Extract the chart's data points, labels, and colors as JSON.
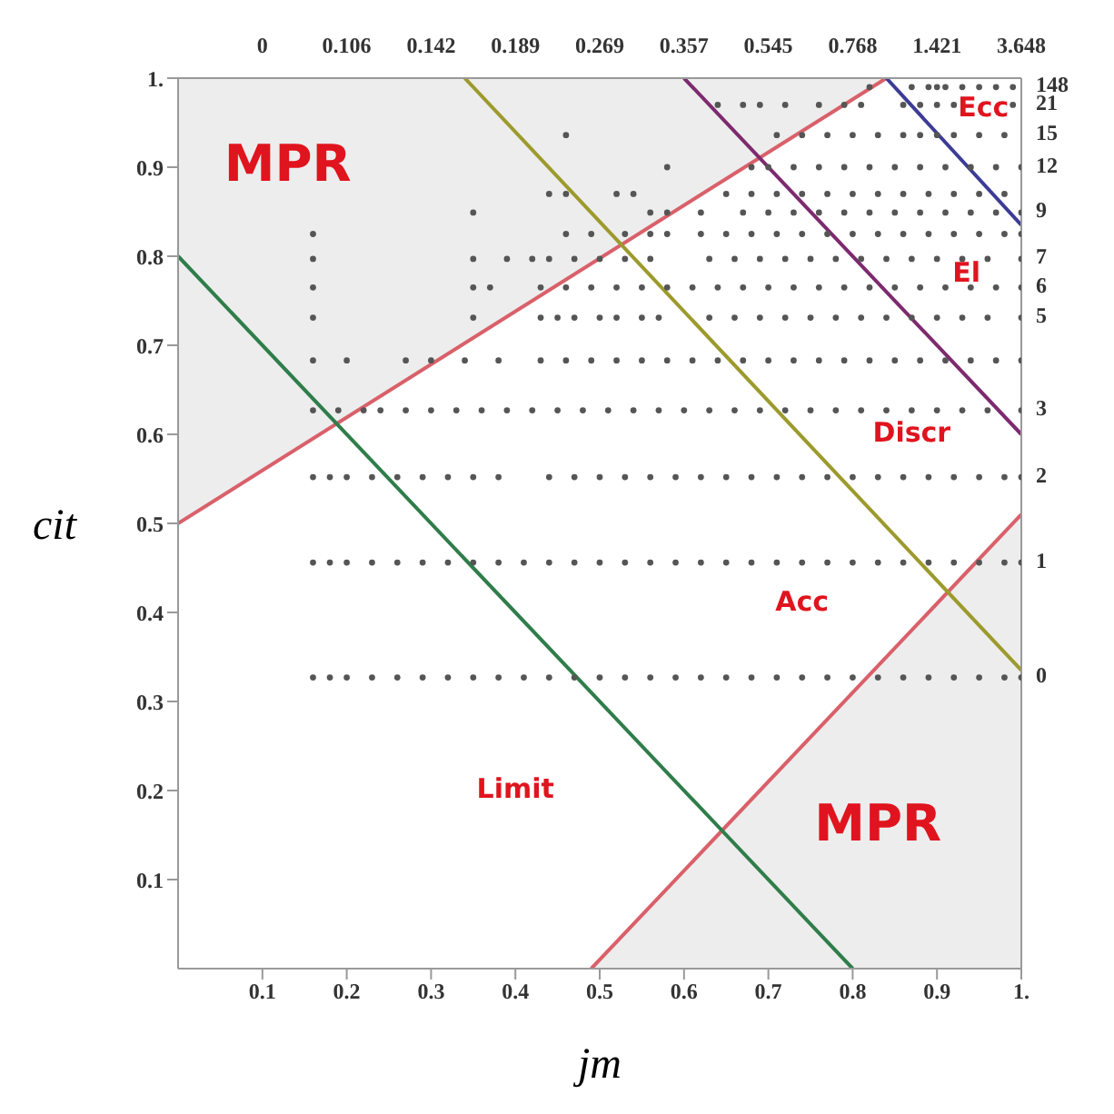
{
  "chart_data": {
    "type": "scatter",
    "xlabel": "jm",
    "ylabel": "cit",
    "marker": "circle",
    "xlim": [
      0,
      1
    ],
    "ylim": [
      0,
      1
    ],
    "xticks": [
      0.1,
      0.2,
      0.3,
      0.4,
      0.5,
      0.6,
      0.7,
      0.8,
      0.9,
      {
        "value": 1,
        "label": "1."
      }
    ],
    "yticks": [
      0.1,
      0.2,
      0.3,
      0.4,
      0.5,
      0.6,
      0.7,
      0.8,
      0.9,
      {
        "value": 1,
        "label": "1."
      }
    ],
    "series": [
      {
        "type": "line",
        "marker": "none",
        "color": "#d9606a",
        "x": [
          0,
          0.84
        ],
        "values": [
          0.5,
          1
        ],
        "lower": [
          0.5,
          1
        ],
        "upper": [
          1,
          1
        ]
      },
      {
        "type": "line",
        "marker": "none",
        "color": "#d9606a",
        "x": [
          0.49,
          1
        ],
        "values": [
          0,
          0.51
        ],
        "lower": [
          0,
          0
        ],
        "upper": [
          0,
          0.51
        ]
      },
      {
        "name": "0",
        "color": "#555555",
        "x": [
          0.16,
          0.18,
          0.2,
          0.23,
          0.26,
          0.29,
          0.32,
          0.35,
          0.38,
          0.41,
          0.44,
          0.47,
          0.5,
          0.53,
          0.56,
          0.59,
          0.62,
          0.65,
          0.68,
          0.71,
          0.74,
          0.77,
          0.8,
          0.83,
          0.86,
          0.89,
          0.92,
          0.95,
          0.98,
          1.0
        ],
        "values": [
          0.327,
          0.327,
          0.327,
          0.327,
          0.327,
          0.327,
          0.327,
          0.327,
          0.327,
          0.327,
          0.327,
          0.327,
          0.327,
          0.327,
          0.327,
          0.327,
          0.327,
          0.327,
          0.327,
          0.327,
          0.327,
          0.327,
          0.327,
          0.327,
          0.327,
          0.327,
          0.327,
          0.327,
          0.327,
          0.327
        ]
      },
      {
        "name": "1",
        "color": "#555555",
        "x": [
          0.16,
          0.18,
          0.2,
          0.23,
          0.26,
          0.29,
          0.32,
          0.35,
          0.38,
          0.41,
          0.44,
          0.47,
          0.5,
          0.53,
          0.56,
          0.59,
          0.62,
          0.65,
          0.68,
          0.71,
          0.74,
          0.77,
          0.8,
          0.83,
          0.86,
          0.89,
          0.92,
          0.95,
          0.98,
          1.0
        ],
        "values": [
          0.456,
          0.456,
          0.456,
          0.456,
          0.456,
          0.456,
          0.456,
          0.456,
          0.456,
          0.456,
          0.456,
          0.456,
          0.456,
          0.456,
          0.456,
          0.456,
          0.456,
          0.456,
          0.456,
          0.456,
          0.456,
          0.456,
          0.456,
          0.456,
          0.456,
          0.456,
          0.456,
          0.456,
          0.456,
          0.456
        ]
      },
      {
        "name": "2",
        "color": "#555555",
        "x": [
          0.16,
          0.18,
          0.2,
          0.23,
          0.26,
          0.29,
          0.32,
          0.35,
          0.38,
          0.44,
          0.47,
          0.5,
          0.53,
          0.56,
          0.59,
          0.62,
          0.65,
          0.68,
          0.71,
          0.74,
          0.77,
          0.8,
          0.83,
          0.86,
          0.89,
          0.92,
          0.95,
          0.98,
          1.0
        ],
        "values": [
          0.552,
          0.552,
          0.552,
          0.552,
          0.552,
          0.552,
          0.552,
          0.552,
          0.552,
          0.552,
          0.552,
          0.552,
          0.552,
          0.552,
          0.552,
          0.552,
          0.552,
          0.552,
          0.552,
          0.552,
          0.552,
          0.552,
          0.552,
          0.552,
          0.552,
          0.552,
          0.552,
          0.552,
          0.552
        ]
      },
      {
        "name": "3",
        "color": "#555555",
        "x": [
          0.16,
          0.19,
          0.22,
          0.24,
          0.27,
          0.3,
          0.33,
          0.36,
          0.39,
          0.42,
          0.45,
          0.48,
          0.51,
          0.54,
          0.57,
          0.6,
          0.63,
          0.66,
          0.69,
          0.72,
          0.75,
          0.78,
          0.81,
          0.84,
          0.87,
          0.9,
          0.93,
          0.96,
          1.0
        ],
        "values": [
          0.627,
          0.627,
          0.627,
          0.627,
          0.627,
          0.627,
          0.627,
          0.627,
          0.627,
          0.627,
          0.627,
          0.627,
          0.627,
          0.627,
          0.627,
          0.627,
          0.627,
          0.627,
          0.627,
          0.627,
          0.627,
          0.627,
          0.627,
          0.627,
          0.627,
          0.627,
          0.627,
          0.627,
          0.627
        ]
      },
      {
        "color": "#555555",
        "x": [
          0.16,
          0.2,
          0.27,
          0.3,
          0.34,
          0.38,
          0.43,
          0.46,
          0.49,
          0.52,
          0.55,
          0.58,
          0.61,
          0.64,
          0.67,
          0.7,
          0.73,
          0.76,
          0.79,
          0.82,
          0.85,
          0.88,
          0.91,
          0.94,
          0.97,
          1.0
        ],
        "values": [
          0.683,
          0.683,
          0.683,
          0.683,
          0.683,
          0.683,
          0.683,
          0.683,
          0.683,
          0.683,
          0.683,
          0.683,
          0.683,
          0.683,
          0.683,
          0.683,
          0.683,
          0.683,
          0.683,
          0.683,
          0.683,
          0.683,
          0.683,
          0.683,
          0.683,
          0.683
        ]
      },
      {
        "name": "5",
        "color": "#555555",
        "x": [
          0.16,
          0.35,
          0.43,
          0.45,
          0.47,
          0.5,
          0.52,
          0.55,
          0.57,
          0.63,
          0.66,
          0.69,
          0.72,
          0.75,
          0.78,
          0.81,
          0.84,
          0.87,
          0.9,
          0.93,
          0.96,
          1.0
        ],
        "values": [
          0.731,
          0.731,
          0.731,
          0.731,
          0.731,
          0.731,
          0.731,
          0.731,
          0.731,
          0.731,
          0.731,
          0.731,
          0.731,
          0.731,
          0.731,
          0.731,
          0.731,
          0.731,
          0.731,
          0.731,
          0.731,
          0.731
        ]
      },
      {
        "name": "6",
        "color": "#555555",
        "x": [
          0.16,
          0.35,
          0.37,
          0.43,
          0.46,
          0.49,
          0.52,
          0.55,
          0.58,
          0.61,
          0.64,
          0.67,
          0.7,
          0.73,
          0.76,
          0.79,
          0.82,
          0.85,
          0.88,
          0.91,
          0.94,
          0.97,
          1.0
        ],
        "values": [
          0.765,
          0.765,
          0.765,
          0.765,
          0.765,
          0.765,
          0.765,
          0.765,
          0.765,
          0.765,
          0.765,
          0.765,
          0.765,
          0.765,
          0.765,
          0.765,
          0.765,
          0.765,
          0.765,
          0.765,
          0.765,
          0.765,
          0.765
        ]
      },
      {
        "name": "7",
        "color": "#555555",
        "x": [
          0.16,
          0.35,
          0.39,
          0.42,
          0.44,
          0.47,
          0.5,
          0.53,
          0.56,
          0.63,
          0.66,
          0.69,
          0.72,
          0.75,
          0.78,
          0.81,
          0.84,
          0.87,
          0.9,
          0.93,
          0.96,
          1.0
        ],
        "values": [
          0.797,
          0.797,
          0.797,
          0.797,
          0.797,
          0.797,
          0.797,
          0.797,
          0.797,
          0.797,
          0.797,
          0.797,
          0.797,
          0.797,
          0.797,
          0.797,
          0.797,
          0.797,
          0.797,
          0.797,
          0.797,
          0.797
        ]
      },
      {
        "color": "#555555",
        "x": [
          0.16,
          0.46,
          0.49,
          0.53,
          0.56,
          0.58,
          0.62,
          0.65,
          0.68,
          0.71,
          0.74,
          0.77,
          0.8,
          0.83,
          0.86,
          0.89,
          0.92,
          0.95,
          0.98,
          1.0
        ],
        "values": [
          0.825,
          0.825,
          0.825,
          0.825,
          0.825,
          0.825,
          0.825,
          0.825,
          0.825,
          0.825,
          0.825,
          0.825,
          0.825,
          0.825,
          0.825,
          0.825,
          0.825,
          0.825,
          0.825,
          0.825
        ]
      },
      {
        "name": "9",
        "color": "#555555",
        "x": [
          0.35,
          0.56,
          0.58,
          0.62,
          0.67,
          0.7,
          0.73,
          0.76,
          0.79,
          0.82,
          0.85,
          0.88,
          0.91,
          0.94,
          0.97,
          1.0
        ],
        "values": [
          0.849,
          0.849,
          0.849,
          0.849,
          0.849,
          0.849,
          0.849,
          0.849,
          0.849,
          0.849,
          0.849,
          0.849,
          0.849,
          0.849,
          0.849,
          0.849
        ]
      },
      {
        "color": "#555555",
        "x": [
          0.44,
          0.46,
          0.52,
          0.54,
          0.65,
          0.68,
          0.71,
          0.74,
          0.77,
          0.8,
          0.83,
          0.86,
          0.89,
          0.92,
          0.95,
          0.98
        ],
        "values": [
          0.87,
          0.87,
          0.87,
          0.87,
          0.87,
          0.87,
          0.87,
          0.87,
          0.87,
          0.87,
          0.87,
          0.87,
          0.87,
          0.87,
          0.87,
          0.87
        ]
      },
      {
        "name": "12",
        "color": "#555555",
        "x": [
          0.58,
          0.68,
          0.7,
          0.73,
          0.76,
          0.79,
          0.82,
          0.85,
          0.88,
          0.91,
          0.94,
          0.97,
          1.0
        ],
        "values": [
          0.9,
          0.9,
          0.9,
          0.9,
          0.9,
          0.9,
          0.9,
          0.9,
          0.9,
          0.9,
          0.9,
          0.9,
          0.9
        ]
      },
      {
        "name": "15",
        "color": "#555555",
        "x": [
          0.46,
          0.71,
          0.74,
          0.77,
          0.8,
          0.83,
          0.86,
          0.88,
          0.9,
          0.92,
          0.95,
          0.98
        ],
        "values": [
          0.936,
          0.936,
          0.936,
          0.936,
          0.936,
          0.936,
          0.936,
          0.936,
          0.936,
          0.936,
          0.936,
          0.936
        ]
      },
      {
        "name": "21",
        "color": "#555555",
        "x": [
          0.64,
          0.67,
          0.69,
          0.72,
          0.76,
          0.79,
          0.81,
          0.86,
          0.88,
          0.9,
          0.92,
          0.94,
          0.97,
          0.99
        ],
        "values": [
          0.97,
          0.97,
          0.97,
          0.97,
          0.97,
          0.97,
          0.97,
          0.97,
          0.97,
          0.97,
          0.97,
          null,
          null,
          0.97
        ]
      },
      {
        "name": "148",
        "color": "#555555",
        "x": [
          0.82,
          0.87,
          0.89,
          0.9,
          0.91,
          0.93,
          0.95,
          0.97,
          0.99
        ],
        "values": [
          0.99,
          0.99,
          0.99,
          0.99,
          0.99,
          0.99,
          0.99,
          0.99,
          0.99
        ]
      },
      {
        "type": "line",
        "marker": "none",
        "color": "#2f7d4a",
        "x": [
          0,
          0.8
        ],
        "values": [
          0.8,
          0
        ]
      },
      {
        "type": "line",
        "marker": "none",
        "color": "#9c9a2c",
        "x": [
          0.34,
          1
        ],
        "values": [
          1,
          0.335
        ]
      },
      {
        "type": "line",
        "marker": "none",
        "color": "#7d2a6e",
        "x": [
          0.6,
          1
        ],
        "values": [
          1,
          0.6
        ]
      },
      {
        "type": "line",
        "marker": "none",
        "color": "#3c3c96",
        "x": [
          0.84,
          1
        ],
        "values": [
          1,
          0.835
        ]
      }
    ],
    "annotations": [
      "MPR",
      "MPR",
      "Ecc",
      "El",
      "Discr",
      "Acc",
      "Limit",
      "0",
      "0.106",
      "0.142",
      "0.189",
      "0.269",
      "0.357",
      "0.545",
      "0.768",
      "1.421",
      "3.648"
    ]
  }
}
